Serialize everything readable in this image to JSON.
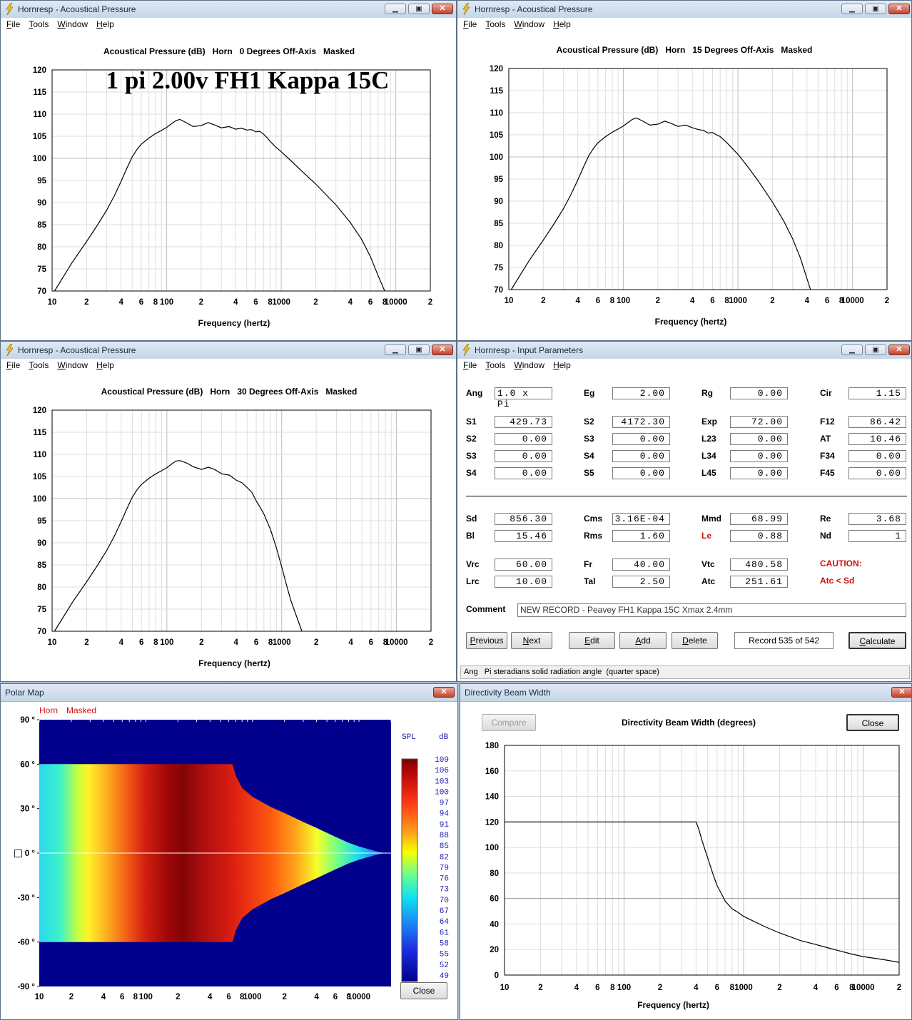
{
  "app": "Hornresp",
  "menu": [
    "File",
    "Tools",
    "Window",
    "Help"
  ],
  "win_pressure_0": {
    "title": "Hornresp - Acoustical Pressure",
    "header": "Acoustical Pressure (dB)   Horn   0 Degrees Off-Axis   Masked",
    "overlay": "1 pi 2.00v FH1 Kappa 15C",
    "xlabel": "Frequency (hertz)"
  },
  "win_pressure_15": {
    "title": "Hornresp - Acoustical Pressure",
    "header": "Acoustical Pressure (dB)   Horn   15 Degrees Off-Axis   Masked",
    "xlabel": "Frequency (hertz)"
  },
  "win_pressure_30": {
    "title": "Hornresp - Acoustical Pressure",
    "header": "Acoustical Pressure (dB)   Horn   30 Degrees Off-Axis   Masked",
    "xlabel": "Frequency (hertz)"
  },
  "freq_ticks": [
    "10",
    "2",
    "4",
    "6",
    "8",
    "100",
    "2",
    "4",
    "6",
    "8",
    "1000",
    "2",
    "4",
    "6",
    "8",
    "10000",
    "2"
  ],
  "spl_ticks": [
    "120",
    "115",
    "110",
    "105",
    "100",
    "95",
    "90",
    "85",
    "80",
    "75",
    "70"
  ],
  "chart_data": [
    {
      "type": "line",
      "title": "Acoustical Pressure (dB)   Horn   0 Degrees Off-Axis   Masked",
      "xlabel": "Frequency (hertz)",
      "ylabel": "",
      "xscale": "log",
      "xlim": [
        10,
        20000
      ],
      "ylim": [
        70,
        120
      ],
      "grid": true,
      "x": [
        10.5,
        15,
        20,
        25,
        30,
        35,
        40,
        45,
        50,
        55,
        60,
        70,
        80,
        90,
        100,
        110,
        120,
        130,
        150,
        170,
        200,
        230,
        260,
        300,
        350,
        400,
        450,
        500,
        550,
        600,
        650,
        700,
        750,
        800,
        900,
        1000,
        1200,
        1500,
        2000,
        3000,
        4000,
        5000,
        6000,
        7000,
        8000
      ],
      "y": [
        70,
        76.5,
        81.2,
        85,
        88.3,
        91.6,
        94.8,
        97.8,
        100.3,
        102,
        103.2,
        104.6,
        105.6,
        106.3,
        107,
        107.8,
        108.5,
        108.8,
        108,
        107.2,
        107.4,
        108.1,
        107.6,
        106.9,
        107.2,
        106.6,
        106.8,
        106.4,
        106.5,
        106,
        106.1,
        105.5,
        104.7,
        103.8,
        102.5,
        101.5,
        99.6,
        97.2,
        94.2,
        89.5,
        85.5,
        81.8,
        77.8,
        73.5,
        70
      ]
    },
    {
      "type": "line",
      "title": "Acoustical Pressure (dB)   Horn   15 Degrees Off-Axis   Masked",
      "xlabel": "Frequency (hertz)",
      "ylabel": "",
      "xscale": "log",
      "xlim": [
        10,
        20000
      ],
      "ylim": [
        70,
        120
      ],
      "grid": true,
      "x": [
        10.5,
        15,
        20,
        25,
        30,
        35,
        40,
        45,
        50,
        55,
        60,
        70,
        80,
        90,
        100,
        110,
        120,
        130,
        150,
        170,
        200,
        230,
        260,
        300,
        350,
        400,
        450,
        500,
        550,
        600,
        650,
        700,
        800,
        900,
        1000,
        1200,
        1500,
        2000,
        2500,
        3000,
        3500,
        4000,
        4300
      ],
      "y": [
        70,
        76.5,
        81.2,
        85,
        88.3,
        91.6,
        94.8,
        97.8,
        100.3,
        102,
        103.2,
        104.6,
        105.6,
        106.3,
        107,
        107.8,
        108.5,
        108.8,
        108,
        107.2,
        107.4,
        108.1,
        107.6,
        106.9,
        107.2,
        106.6,
        106.2,
        106,
        105.4,
        105.5,
        105,
        104.6,
        103.2,
        101.8,
        100.6,
        98,
        94.6,
        89.8,
        85.6,
        81.5,
        77.2,
        72.5,
        70
      ]
    },
    {
      "type": "line",
      "title": "Acoustical Pressure (dB)   Horn   30 Degrees Off-Axis   Masked",
      "xlabel": "Frequency (hertz)",
      "ylabel": "",
      "xscale": "log",
      "xlim": [
        10,
        20000
      ],
      "ylim": [
        70,
        120
      ],
      "grid": true,
      "x": [
        10.5,
        15,
        20,
        25,
        30,
        35,
        40,
        45,
        50,
        55,
        60,
        70,
        80,
        90,
        100,
        110,
        120,
        130,
        150,
        170,
        200,
        230,
        260,
        300,
        350,
        400,
        450,
        500,
        550,
        600,
        650,
        700,
        800,
        900,
        1000,
        1100,
        1200,
        1300,
        1400,
        1500
      ],
      "y": [
        70,
        76.5,
        81.2,
        85,
        88.3,
        91.6,
        94.8,
        97.8,
        100.3,
        102,
        103.2,
        104.6,
        105.6,
        106.3,
        107,
        107.8,
        108.5,
        108.6,
        108,
        107.2,
        106.6,
        107.1,
        106.6,
        105.6,
        105.3,
        104.2,
        103.6,
        102.5,
        101.4,
        99.5,
        98,
        96.5,
        93,
        88.8,
        84.6,
        80.5,
        77,
        74.5,
        72.2,
        70
      ]
    },
    {
      "type": "line",
      "title": "Directivity Beam Width (degrees)",
      "xlabel": "Frequency (hertz)",
      "ylabel": "",
      "xscale": "log",
      "xlim": [
        10,
        20000
      ],
      "ylim": [
        0,
        180
      ],
      "grid": true,
      "x": [
        10,
        100,
        400,
        420,
        450,
        500,
        550,
        600,
        650,
        700,
        800,
        900,
        1000,
        1500,
        2000,
        3000,
        4000,
        5000,
        6000,
        8000,
        10000,
        15000,
        20000
      ],
      "y": [
        120,
        120,
        120,
        115,
        105,
        92,
        80,
        70,
        64,
        58,
        52,
        49,
        46,
        38,
        33,
        27,
        24,
        21.5,
        19.5,
        16.5,
        14.5,
        12,
        10
      ]
    }
  ],
  "directivity": {
    "title": "Directivity Beam Width",
    "header": "Directivity Beam Width (degrees)",
    "compare": "Compare",
    "close": "Close",
    "xlabel": "Frequency (hertz)",
    "yticks": [
      "180",
      "160",
      "140",
      "120",
      "100",
      "80",
      "60",
      "40",
      "20",
      "0"
    ]
  },
  "polar": {
    "title": "Polar Map",
    "tag1": "Horn",
    "tag2": "Masked",
    "spl_label": "SPL",
    "db_label": "dB",
    "angle_ticks": [
      "90 °",
      "60 °",
      "30 °",
      "0 °",
      "-30 °",
      "-60 °",
      "-90 °"
    ],
    "scale": [
      "109",
      "106",
      "103",
      "100",
      "97",
      "94",
      "91",
      "88",
      "85",
      "82",
      "79",
      "76",
      "73",
      "70",
      "67",
      "64",
      "61",
      "58",
      "55",
      "52",
      "49"
    ],
    "close": "Close",
    "colors": {
      "low": "#00008c",
      "mid": "#f7ff00",
      "high": "#7a0000"
    }
  },
  "input": {
    "title": "Hornresp - Input Parameters",
    "rows_top": [
      [
        [
          "Ang",
          "1.0 x Pi"
        ],
        [
          "Eg",
          "2.00"
        ],
        [
          "Rg",
          "0.00"
        ],
        [
          "Cir",
          "1.15"
        ]
      ],
      [
        [
          "S1",
          "429.73"
        ],
        [
          "S2",
          "4172.30"
        ],
        [
          "Exp",
          "72.00"
        ],
        [
          "F12",
          "86.42"
        ]
      ],
      [
        [
          "S2",
          "0.00"
        ],
        [
          "S3",
          "0.00"
        ],
        [
          "L23",
          "0.00"
        ],
        [
          "AT",
          "10.46"
        ]
      ],
      [
        [
          "S3",
          "0.00"
        ],
        [
          "S4",
          "0.00"
        ],
        [
          "L34",
          "0.00"
        ],
        [
          "F34",
          "0.00"
        ]
      ],
      [
        [
          "S4",
          "0.00"
        ],
        [
          "S5",
          "0.00"
        ],
        [
          "L45",
          "0.00"
        ],
        [
          "F45",
          "0.00"
        ]
      ]
    ],
    "rows_bottom": [
      [
        [
          "Sd",
          "856.30"
        ],
        [
          "Cms",
          "3.16E-04"
        ],
        [
          "Mmd",
          "68.99"
        ],
        [
          "Re",
          "3.68"
        ]
      ],
      [
        [
          "Bl",
          "15.46"
        ],
        [
          "Rms",
          "1.60"
        ],
        [
          "Le",
          "0.88"
        ],
        [
          "Nd",
          "1"
        ]
      ],
      [
        [
          "Vrc",
          "60.00"
        ],
        [
          "Fr",
          "40.00"
        ],
        [
          "Vtc",
          "480.58"
        ]
      ],
      [
        [
          "Lrc",
          "10.00"
        ],
        [
          "Tal",
          "2.50"
        ],
        [
          "Atc",
          "251.61"
        ]
      ]
    ],
    "caution": "CAUTION:",
    "caution_detail": "Atc < Sd",
    "comment_label": "Comment",
    "comment": "NEW RECORD - Peavey FH1  Kappa 15C  Xmax 2.4mm",
    "buttons": [
      "Previous",
      "Next",
      "Edit",
      "Add",
      "Delete"
    ],
    "record": "Record 535 of 542",
    "calculate": "Calculate",
    "status": "Ang   Pi steradians solid radiation angle  (quarter space)"
  }
}
